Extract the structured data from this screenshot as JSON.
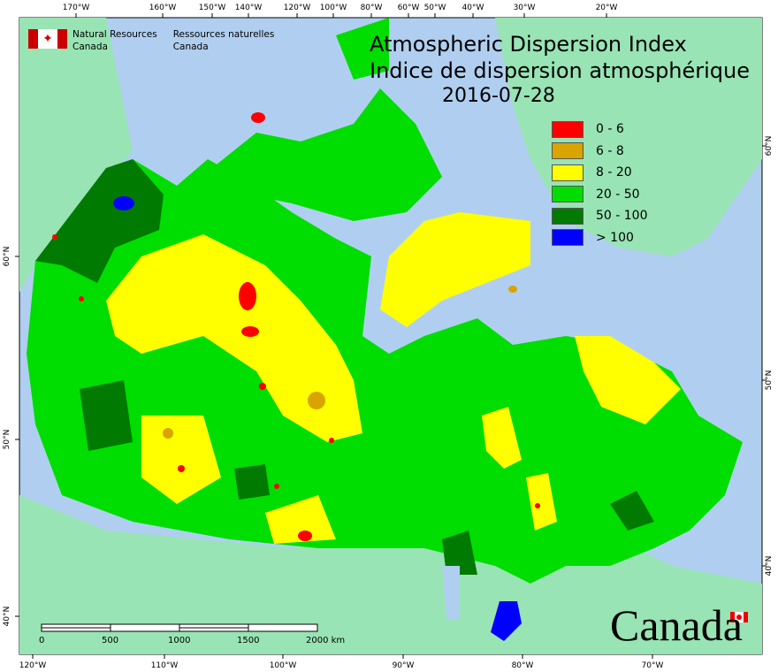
{
  "title": {
    "en": "Atmospheric Dispersion Index",
    "fr": "Indice de dispersion atmosphérique",
    "date": "2016-07-28"
  },
  "agency": {
    "en_line1": "Natural Resources",
    "en_line2": "Canada",
    "fr_line1": "Ressources naturelles",
    "fr_line2": "Canada"
  },
  "wordmark": "Canada",
  "legend": [
    {
      "label": "0 - 6",
      "color": "#ff0000"
    },
    {
      "label": "6 - 8",
      "color": "#d9a300"
    },
    {
      "label": "8 - 20",
      "color": "#ffff00"
    },
    {
      "label": "20 - 50",
      "color": "#00dd00"
    },
    {
      "label": "50 - 100",
      "color": "#007a00"
    },
    {
      "label": "> 100",
      "color": "#0000ff"
    }
  ],
  "top_ticks": [
    "170°W",
    "160°W",
    "150°W",
    "140°W",
    "120°W",
    "100°W",
    "80°W",
    "60°W",
    "50°W",
    "40°W",
    "30°W",
    "20°W"
  ],
  "bottom_ticks": [
    "120°W",
    "110°W",
    "100°W",
    "90°W",
    "80°W",
    "70°W"
  ],
  "left_ticks": [
    "60°N",
    "50°N",
    "40°N"
  ],
  "right_ticks": [
    "60°N",
    "50°N",
    "40°N"
  ],
  "scale": {
    "labels": [
      "0",
      "500",
      "1000",
      "1500",
      "2000 km"
    ]
  },
  "colors": {
    "water": "#b0cff0",
    "other_land": "#98e4b4"
  }
}
